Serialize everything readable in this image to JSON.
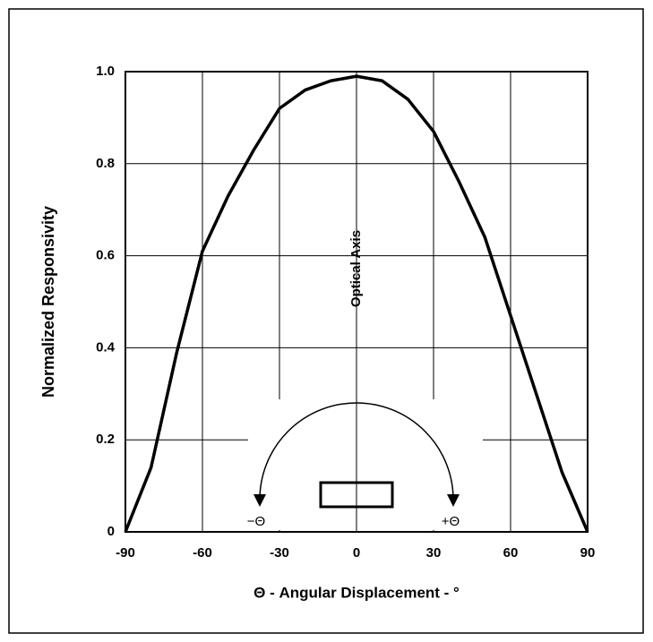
{
  "chart_data": {
    "type": "line",
    "x_label": "Θ - Angular Displacement - °",
    "y_label": "Normalized Responsivity",
    "annotations": [
      "Optical Axis",
      "−Θ",
      "+Θ"
    ],
    "x": [
      -90,
      -80,
      -70,
      -60,
      -50,
      -40,
      -30,
      -20,
      -10,
      0,
      10,
      20,
      30,
      40,
      50,
      60,
      70,
      80,
      90
    ],
    "series": [
      {
        "color": "#000000",
        "values": [
          0,
          0.14,
          0.39,
          0.61,
          0.73,
          0.83,
          0.92,
          0.96,
          0.98,
          0.99,
          0.98,
          0.94,
          0.87,
          0.76,
          0.64,
          0.47,
          0.3,
          0.13,
          0
        ]
      }
    ],
    "xlim": [
      -90,
      90
    ],
    "xticks": [
      -90,
      -60,
      -30,
      0,
      30,
      60,
      90
    ],
    "ylim": [
      0,
      1
    ],
    "yticks": [
      0,
      0.2,
      0.4,
      0.6,
      0.8,
      {
        "value": 1,
        "label": "1.0"
      }
    ],
    "grid": true
  }
}
